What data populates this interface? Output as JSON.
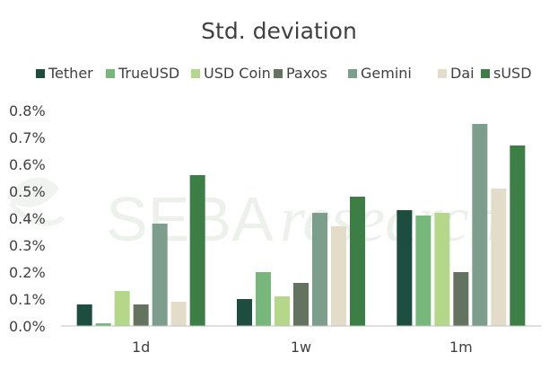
{
  "colors": {
    "text": "#404040",
    "axis": "#bfbfbf",
    "watermark": "#e9efe8"
  },
  "watermark": {
    "text_plain": "SEBA",
    "text_italic": "research"
  },
  "chart_data": {
    "type": "bar",
    "title": "Std. deviation",
    "xlabel": "",
    "ylabel": "",
    "ylim": [
      0,
      0.8
    ],
    "yticks": [
      "0.0%",
      "0.1%",
      "0.2%",
      "0.3%",
      "0.4%",
      "0.5%",
      "0.6%",
      "0.7%",
      "0.8%"
    ],
    "grid": false,
    "legend_position": "top",
    "categories": [
      "1d",
      "1w",
      "1m"
    ],
    "series": [
      {
        "name": "Tether",
        "color": "#1c4d3e",
        "values": [
          0.08,
          0.1,
          0.43
        ]
      },
      {
        "name": "TrueUSD",
        "color": "#77b77b",
        "values": [
          0.01,
          0.2,
          0.41
        ]
      },
      {
        "name": "USD Coin",
        "color": "#b5d78a",
        "values": [
          0.13,
          0.11,
          0.42
        ]
      },
      {
        "name": "Paxos",
        "color": "#64735f",
        "values": [
          0.08,
          0.16,
          0.2
        ]
      },
      {
        "name": "Gemini",
        "color": "#7e9e8d",
        "values": [
          0.38,
          0.42,
          0.75
        ]
      },
      {
        "name": "Dai",
        "color": "#e3dcc9",
        "values": [
          0.09,
          0.37,
          0.51
        ]
      },
      {
        "name": "sUSD",
        "color": "#3c7e45",
        "values": [
          0.56,
          0.48,
          0.67
        ]
      }
    ]
  }
}
